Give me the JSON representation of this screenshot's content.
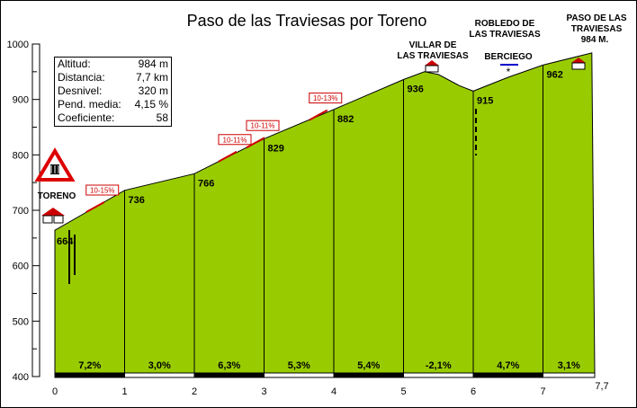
{
  "title": "Paso de las Traviesas por Toreno",
  "stats": [
    {
      "label": "Altitud:",
      "value": "984 m"
    },
    {
      "label": "Distancia:",
      "value": "7,7 km"
    },
    {
      "label": "Desnivel:",
      "value": "320 m"
    },
    {
      "label": "Pend. media:",
      "value": "4,15 %"
    },
    {
      "label": "Coeficiente:",
      "value": "58"
    }
  ],
  "chart_data": {
    "type": "area",
    "title": "Paso de las Traviesas por Toreno",
    "xlim": [
      0,
      7.7
    ],
    "ylim": [
      400,
      1000
    ],
    "x_ticks": [
      "0",
      "1",
      "2",
      "3",
      "4",
      "5",
      "6",
      "7",
      "7,7"
    ],
    "y_ticks": [
      "400",
      "500",
      "600",
      "700",
      "800",
      "900",
      "1000"
    ],
    "profile": [
      {
        "x": 0,
        "y": 664
      },
      {
        "x": 0.5,
        "y": 700
      },
      {
        "x": 1,
        "y": 736
      },
      {
        "x": 2,
        "y": 766
      },
      {
        "x": 3,
        "y": 829
      },
      {
        "x": 4,
        "y": 882
      },
      {
        "x": 5,
        "y": 936
      },
      {
        "x": 5.3,
        "y": 950
      },
      {
        "x": 5.5,
        "y": 945
      },
      {
        "x": 5.8,
        "y": 925
      },
      {
        "x": 6,
        "y": 915
      },
      {
        "x": 6.5,
        "y": 940
      },
      {
        "x": 7,
        "y": 962
      },
      {
        "x": 7.7,
        "y": 984
      }
    ],
    "km_labels": [
      {
        "x": 0,
        "label": "664"
      },
      {
        "x": 1,
        "label": "736"
      },
      {
        "x": 2,
        "label": "766"
      },
      {
        "x": 3,
        "label": "829"
      },
      {
        "x": 4,
        "label": "882"
      },
      {
        "x": 5,
        "label": "936"
      },
      {
        "x": 6,
        "label": "915"
      },
      {
        "x": 7,
        "label": "962"
      }
    ],
    "gradients": [
      "7,2%",
      "3,0%",
      "6,3%",
      "5,3%",
      "5,4%",
      "-2,1%",
      "4,7%",
      "3,1%"
    ],
    "ramps": [
      {
        "x": 0.5,
        "label": "10-15%"
      },
      {
        "x": 2.4,
        "label": "10-11%"
      },
      {
        "x": 2.8,
        "label": "10-11%"
      },
      {
        "x": 3.7,
        "label": "10-13%"
      }
    ],
    "places": [
      {
        "name": "TORENO",
        "lines": [
          "TORENO"
        ],
        "x": 0
      },
      {
        "name": "VILLAR DE LAS TRAVIESAS",
        "lines": [
          "VILLAR DE",
          "LAS TRAVIESAS"
        ],
        "x": 5.4
      },
      {
        "name": "BERCIEGO",
        "lines": [
          "BERCIEGO"
        ],
        "x": 6.5
      },
      {
        "name": "ROBLEDO DE LAS TRAVIESAS",
        "lines": [
          "ROBLEDO DE",
          "LAS TRAVIESAS"
        ],
        "x": 7.1
      },
      {
        "name": "PASO DE LAS TRAVIESAS 984 M.",
        "lines": [
          "PASO DE LAS",
          "TRAVIESAS",
          "984 M."
        ],
        "x": 7.7
      }
    ],
    "colors": {
      "fill": "#99cc00",
      "stroke": "#000000",
      "ramp": "#cc0000",
      "bar_dark": "#000000",
      "bar_light": "#ffffff",
      "sign_red": "#dd0000"
    }
  }
}
